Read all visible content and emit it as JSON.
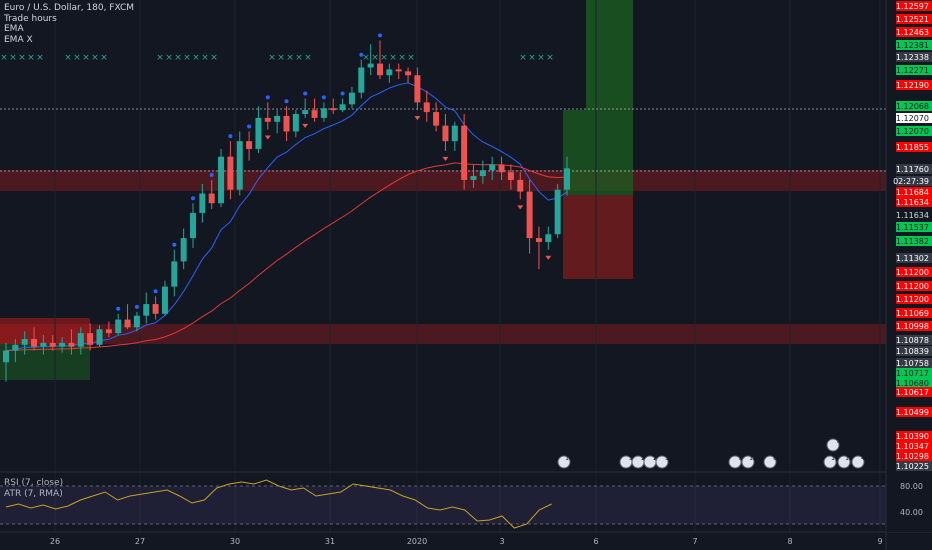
{
  "legend": {
    "symbol": "Euro / U.S. Dollar, 180, FXCM",
    "studies": [
      "Trade hours",
      "EMA",
      "EMA X"
    ]
  },
  "colors": {
    "up": "#26a69a",
    "down": "#ef5350",
    "ema_fast": "#2962ff",
    "ema_slow": "#e53935",
    "rsi": "#c9a227",
    "price_red": "#ff0000",
    "price_green": "#00c853"
  },
  "price_labels": [
    {
      "price": "1.12597",
      "bg": "red"
    },
    {
      "price": "1.12521",
      "bg": "red"
    },
    {
      "price": "1.12463",
      "bg": "red"
    },
    {
      "price": "1.12381",
      "bg": "green"
    },
    {
      "price": "1.12338",
      "bg": "gray"
    },
    {
      "price": "1.12271",
      "bg": "green"
    },
    {
      "price": "1.12190",
      "bg": "red"
    },
    {
      "price": "1.12068",
      "bg": "green"
    },
    {
      "price": "1.12070",
      "bg": "white"
    },
    {
      "price": "1.12070",
      "bg": "green"
    },
    {
      "price": "1.11855",
      "bg": "red"
    },
    {
      "price": "1.11760",
      "bg": "gray"
    },
    {
      "price": "02:27:39",
      "bg": "gray"
    },
    {
      "price": "1.11684",
      "bg": "red"
    },
    {
      "price": "1.11634",
      "bg": "red"
    },
    {
      "price": "1.11634",
      "bg": "dark"
    },
    {
      "price": "1.11537",
      "bg": "green"
    },
    {
      "price": "1.11382",
      "bg": "green"
    },
    {
      "price": "1.11302",
      "bg": "gray"
    },
    {
      "price": "1.11200",
      "bg": "red"
    },
    {
      "price": "1.11200",
      "bg": "red"
    },
    {
      "price": "1.11200",
      "bg": "red"
    },
    {
      "price": "1.11069",
      "bg": "red"
    },
    {
      "price": "1.10998",
      "bg": "red"
    },
    {
      "price": "1.10878",
      "bg": "gray"
    },
    {
      "price": "1.10839",
      "bg": "gray"
    },
    {
      "price": "1.10758",
      "bg": "gray"
    },
    {
      "price": "1.10717",
      "bg": "green"
    },
    {
      "price": "1.10680",
      "bg": "green"
    },
    {
      "price": "1.10617",
      "bg": "red"
    },
    {
      "price": "1.10499",
      "bg": "red"
    },
    {
      "price": "1.10390",
      "bg": "red"
    },
    {
      "price": "1.10347",
      "bg": "red"
    },
    {
      "price": "1.10298",
      "bg": "red"
    },
    {
      "price": "1.10225",
      "bg": "gray"
    }
  ],
  "time_axis": [
    "26",
    "27",
    "30",
    "31",
    "2020",
    "3",
    "6",
    "7",
    "8",
    "9"
  ],
  "indicators": {
    "rsi_label": "RSI (7, close)",
    "atr_label": "ATR (7, RMA)",
    "levels": [
      "80.00",
      "40.00"
    ]
  },
  "event_badges": [
    {
      "value": "14"
    },
    {
      "value": "3"
    },
    {
      "value": "2"
    },
    {
      "value": "2"
    },
    {
      "value": "3"
    },
    {
      "value": "7"
    },
    {
      "value": "13"
    },
    {
      "value": "8"
    },
    {
      "value": "10"
    },
    {
      "value": "13"
    },
    {
      "value": "4"
    },
    {
      "value": "7"
    }
  ],
  "candles": [
    {
      "o": 1.1076,
      "h": 1.1086,
      "l": 1.1066,
      "c": 1.1082
    },
    {
      "o": 1.1082,
      "h": 1.1088,
      "l": 1.1076,
      "c": 1.1085
    },
    {
      "o": 1.1085,
      "h": 1.1092,
      "l": 1.108,
      "c": 1.1088
    },
    {
      "o": 1.1088,
      "h": 1.1094,
      "l": 1.1082,
      "c": 1.1084
    },
    {
      "o": 1.1084,
      "h": 1.109,
      "l": 1.108,
      "c": 1.1086
    },
    {
      "o": 1.1086,
      "h": 1.109,
      "l": 1.1082,
      "c": 1.1084
    },
    {
      "o": 1.1084,
      "h": 1.1089,
      "l": 1.1081,
      "c": 1.1086
    },
    {
      "o": 1.1086,
      "h": 1.1093,
      "l": 1.108,
      "c": 1.1084
    },
    {
      "o": 1.1084,
      "h": 1.1094,
      "l": 1.108,
      "c": 1.1091
    },
    {
      "o": 1.1091,
      "h": 1.1096,
      "l": 1.1082,
      "c": 1.1085
    },
    {
      "o": 1.1085,
      "h": 1.1095,
      "l": 1.1084,
      "c": 1.1093
    },
    {
      "o": 1.1093,
      "h": 1.1097,
      "l": 1.1089,
      "c": 1.1091
    },
    {
      "o": 1.1091,
      "h": 1.1101,
      "l": 1.109,
      "c": 1.1098
    },
    {
      "o": 1.1098,
      "h": 1.1106,
      "l": 1.1093,
      "c": 1.1094
    },
    {
      "o": 1.1094,
      "h": 1.1102,
      "l": 1.1092,
      "c": 1.11
    },
    {
      "o": 1.11,
      "h": 1.1112,
      "l": 1.1096,
      "c": 1.1106
    },
    {
      "o": 1.1106,
      "h": 1.111,
      "l": 1.1098,
      "c": 1.1101
    },
    {
      "o": 1.1101,
      "h": 1.1118,
      "l": 1.11,
      "c": 1.1115
    },
    {
      "o": 1.1115,
      "h": 1.1134,
      "l": 1.111,
      "c": 1.1128
    },
    {
      "o": 1.1128,
      "h": 1.1145,
      "l": 1.1124,
      "c": 1.114
    },
    {
      "o": 1.114,
      "h": 1.1158,
      "l": 1.1135,
      "c": 1.1153
    },
    {
      "o": 1.1153,
      "h": 1.1168,
      "l": 1.1148,
      "c": 1.1163
    },
    {
      "o": 1.1163,
      "h": 1.117,
      "l": 1.1155,
      "c": 1.1158
    },
    {
      "o": 1.1158,
      "h": 1.1186,
      "l": 1.1156,
      "c": 1.1182
    },
    {
      "o": 1.1182,
      "h": 1.119,
      "l": 1.116,
      "c": 1.1165
    },
    {
      "o": 1.1165,
      "h": 1.1195,
      "l": 1.1162,
      "c": 1.119
    },
    {
      "o": 1.119,
      "h": 1.1195,
      "l": 1.118,
      "c": 1.1186
    },
    {
      "o": 1.1186,
      "h": 1.1208,
      "l": 1.1184,
      "c": 1.1202
    },
    {
      "o": 1.1202,
      "h": 1.121,
      "l": 1.1196,
      "c": 1.12
    },
    {
      "o": 1.12,
      "h": 1.1206,
      "l": 1.1194,
      "c": 1.1203
    },
    {
      "o": 1.1203,
      "h": 1.1208,
      "l": 1.119,
      "c": 1.1195
    },
    {
      "o": 1.1195,
      "h": 1.1206,
      "l": 1.1192,
      "c": 1.1204
    },
    {
      "o": 1.1204,
      "h": 1.1212,
      "l": 1.1202,
      "c": 1.1206
    },
    {
      "o": 1.1206,
      "h": 1.1212,
      "l": 1.12,
      "c": 1.1202
    },
    {
      "o": 1.1202,
      "h": 1.121,
      "l": 1.12,
      "c": 1.1207
    },
    {
      "o": 1.1207,
      "h": 1.1212,
      "l": 1.1204,
      "c": 1.1206
    },
    {
      "o": 1.1206,
      "h": 1.1212,
      "l": 1.1205,
      "c": 1.1209
    },
    {
      "o": 1.1209,
      "h": 1.1218,
      "l": 1.1207,
      "c": 1.1215
    },
    {
      "o": 1.1215,
      "h": 1.1232,
      "l": 1.1212,
      "c": 1.1228
    },
    {
      "o": 1.1228,
      "h": 1.124,
      "l": 1.1224,
      "c": 1.123
    },
    {
      "o": 1.123,
      "h": 1.1242,
      "l": 1.1222,
      "c": 1.1224
    },
    {
      "o": 1.1224,
      "h": 1.123,
      "l": 1.122,
      "c": 1.1227
    },
    {
      "o": 1.1227,
      "h": 1.123,
      "l": 1.1222,
      "c": 1.1226
    },
    {
      "o": 1.1226,
      "h": 1.1228,
      "l": 1.122,
      "c": 1.1224
    },
    {
      "o": 1.1224,
      "h": 1.1228,
      "l": 1.1206,
      "c": 1.121
    },
    {
      "o": 1.121,
      "h": 1.1216,
      "l": 1.12,
      "c": 1.1205
    },
    {
      "o": 1.1205,
      "h": 1.121,
      "l": 1.1195,
      "c": 1.1198
    },
    {
      "o": 1.1198,
      "h": 1.1204,
      "l": 1.1185,
      "c": 1.119
    },
    {
      "o": 1.119,
      "h": 1.12,
      "l": 1.1185,
      "c": 1.1198
    },
    {
      "o": 1.1198,
      "h": 1.1204,
      "l": 1.1165,
      "c": 1.117
    },
    {
      "o": 1.117,
      "h": 1.1178,
      "l": 1.1166,
      "c": 1.1172
    },
    {
      "o": 1.1172,
      "h": 1.118,
      "l": 1.1168,
      "c": 1.1175
    },
    {
      "o": 1.1175,
      "h": 1.1182,
      "l": 1.117,
      "c": 1.1178
    },
    {
      "o": 1.1178,
      "h": 1.1182,
      "l": 1.117,
      "c": 1.1174
    },
    {
      "o": 1.1174,
      "h": 1.1178,
      "l": 1.1165,
      "c": 1.117
    },
    {
      "o": 1.117,
      "h": 1.1174,
      "l": 1.116,
      "c": 1.1164
    },
    {
      "o": 1.1164,
      "h": 1.117,
      "l": 1.1132,
      "c": 1.114
    },
    {
      "o": 1.114,
      "h": 1.1146,
      "l": 1.1124,
      "c": 1.1138
    },
    {
      "o": 1.1138,
      "h": 1.1146,
      "l": 1.1134,
      "c": 1.1142
    },
    {
      "o": 1.1142,
      "h": 1.1168,
      "l": 1.114,
      "c": 1.1165
    },
    {
      "o": 1.1165,
      "h": 1.1182,
      "l": 1.1162,
      "c": 1.1176
    }
  ]
}
